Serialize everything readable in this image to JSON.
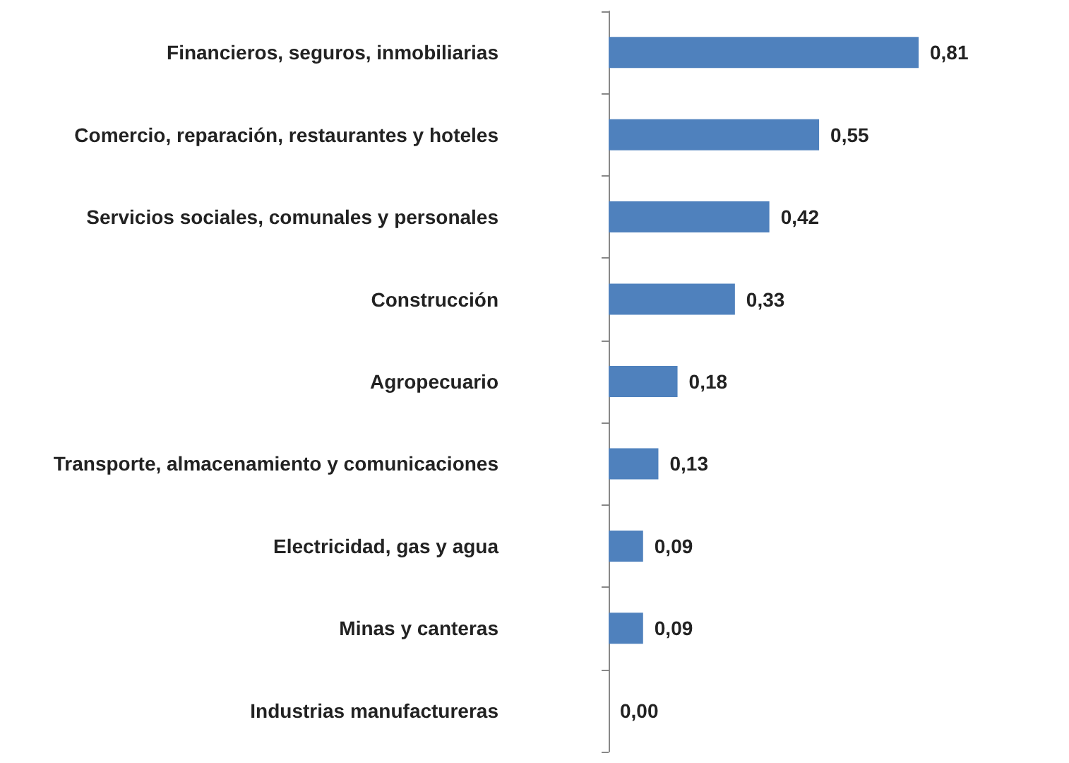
{
  "chart_data": {
    "type": "bar",
    "orientation": "horizontal",
    "categories": [
      "Financieros, seguros, inmobiliarias",
      "Comercio, reparación, restaurantes y hoteles",
      "Servicios sociales, comunales y personales",
      "Construcción",
      "Agropecuario",
      "Transporte, almacenamiento y comunicaciones",
      "Electricidad, gas y agua",
      "Minas y canteras",
      "Industrias manufactureras"
    ],
    "values": [
      0.81,
      0.55,
      0.42,
      0.33,
      0.18,
      0.13,
      0.09,
      0.09,
      0.0
    ],
    "value_labels": [
      "0,81",
      "0,55",
      "0,42",
      "0,33",
      "0,18",
      "0,13",
      "0,09",
      "0,09",
      "0,00"
    ],
    "color": "#4f81bd"
  }
}
